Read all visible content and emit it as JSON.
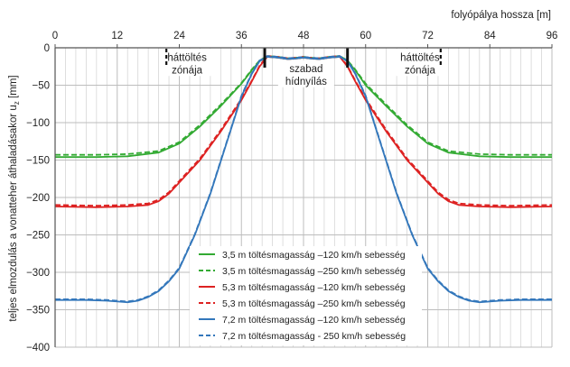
{
  "chart_data": {
    "type": "line",
    "xlabel": "folyópálya hossza   [m]",
    "ylabel": "teljes elmozdulás a vonatteher áthaladásakor  u",
    "ylabel_sub": "z",
    "ylabel_unit": " [mm]",
    "xlim": [
      0,
      96
    ],
    "ylim": [
      -400,
      0
    ],
    "xticks": [
      0,
      12,
      24,
      36,
      48,
      60,
      72,
      84,
      96
    ],
    "yticks": [
      0,
      -50,
      -100,
      -150,
      -200,
      -250,
      -300,
      -350,
      -400
    ],
    "grid": true,
    "x_axis_position": "top",
    "annotations": [
      {
        "lines": [
          "háttöltés",
          "zónája"
        ],
        "x": 25.5,
        "y": -10
      },
      {
        "lines": [
          "szabad",
          "hídnyílás"
        ],
        "x": 48.5,
        "y": -25
      },
      {
        "lines": [
          "háttöltés",
          "zónája"
        ],
        "x": 70.5,
        "y": -10
      }
    ],
    "dashed_markers_x": [
      21.5,
      74.5
    ],
    "bridge_supports_x": [
      40.5,
      56.5
    ],
    "series": [
      {
        "name": "3,5 m töltésmagasság –120 km/h sebesség",
        "color": "#33aa33",
        "style": "solid",
        "x": [
          0,
          8,
          14,
          20,
          24,
          28,
          32,
          36,
          38,
          39.5,
          41,
          43,
          45,
          47,
          48,
          49,
          51,
          53,
          55,
          56.5,
          58,
          60,
          64,
          68,
          72,
          76,
          82,
          88,
          96
        ],
        "y": [
          -146,
          -146,
          -145,
          -140,
          -128,
          -105,
          -78,
          -48,
          -30,
          -18,
          -12,
          -13,
          -15,
          -14,
          -13,
          -14,
          -15,
          -13,
          -12,
          -18,
          -30,
          -50,
          -78,
          -105,
          -128,
          -140,
          -145,
          -146,
          -146
        ]
      },
      {
        "name": "3,5 m töltésmagasság –250 km/h sebesség",
        "color": "#33aa33",
        "style": "dashed",
        "x": [
          0,
          8,
          14,
          20,
          24,
          28,
          32,
          36,
          38,
          39.5,
          41,
          43,
          45,
          47,
          48,
          49,
          51,
          53,
          55,
          56.5,
          58,
          60,
          64,
          68,
          72,
          76,
          82,
          88,
          96
        ],
        "y": [
          -143,
          -143,
          -142,
          -138,
          -126,
          -103,
          -76,
          -47,
          -29,
          -17,
          -11,
          -12,
          -14,
          -13,
          -12,
          -13,
          -14,
          -12,
          -11,
          -17,
          -29,
          -48,
          -76,
          -103,
          -126,
          -138,
          -142,
          -143,
          -143
        ]
      },
      {
        "name": "5,3 m töltésmagasság –120 km/h sebesség",
        "color": "#dd2222",
        "style": "solid",
        "x": [
          0,
          8,
          14,
          18,
          20,
          22,
          24,
          28,
          32,
          36,
          38,
          39.5,
          41,
          43,
          45,
          47,
          48,
          49,
          51,
          53,
          55,
          56.5,
          58,
          60,
          64,
          68,
          72,
          74,
          76,
          78,
          82,
          88,
          96
        ],
        "y": [
          -212,
          -213,
          -212,
          -210,
          -205,
          -195,
          -180,
          -150,
          -112,
          -70,
          -45,
          -25,
          -12,
          -13,
          -15,
          -14,
          -13,
          -14,
          -15,
          -13,
          -12,
          -25,
          -45,
          -70,
          -112,
          -150,
          -180,
          -195,
          -205,
          -210,
          -212,
          -213,
          -212
        ]
      },
      {
        "name": "5,3 m töltésmagasság –250 km/h sebesség",
        "color": "#dd2222",
        "style": "dashed",
        "x": [
          0,
          8,
          14,
          18,
          20,
          22,
          24,
          28,
          32,
          36,
          38,
          39.5,
          41,
          43,
          45,
          47,
          48,
          49,
          51,
          53,
          55,
          56.5,
          58,
          60,
          64,
          68,
          72,
          74,
          76,
          78,
          82,
          88,
          96
        ],
        "y": [
          -210,
          -211,
          -210,
          -208,
          -203,
          -193,
          -178,
          -148,
          -110,
          -68,
          -44,
          -24,
          -11,
          -12,
          -14,
          -13,
          -12,
          -13,
          -14,
          -12,
          -11,
          -24,
          -44,
          -68,
          -110,
          -148,
          -178,
          -193,
          -203,
          -208,
          -210,
          -211,
          -210
        ]
      },
      {
        "name": "7,2 m töltésmagasság –120 km/h sebesség",
        "color": "#3377bb",
        "style": "solid",
        "x": [
          0,
          6,
          10,
          14,
          16,
          18,
          20,
          22,
          24,
          27,
          30,
          33,
          36,
          38,
          39.5,
          41,
          43,
          45,
          47,
          48,
          49,
          51,
          53,
          55,
          56.5,
          58,
          60,
          63,
          66,
          69,
          72,
          74,
          76,
          78,
          80,
          82,
          86,
          90,
          96
        ],
        "y": [
          -337,
          -337,
          -338,
          -340,
          -338,
          -333,
          -325,
          -312,
          -295,
          -250,
          -195,
          -130,
          -65,
          -35,
          -18,
          -12,
          -13,
          -15,
          -14,
          -13,
          -14,
          -15,
          -13,
          -12,
          -18,
          -35,
          -65,
          -130,
          -195,
          -250,
          -295,
          -312,
          -325,
          -333,
          -338,
          -340,
          -338,
          -337,
          -337
        ]
      },
      {
        "name": "7,2 m töltésmagasság - 250 km/h sebesség",
        "color": "#3377bb",
        "style": "dashed",
        "x": [
          0,
          6,
          10,
          14,
          16,
          18,
          20,
          22,
          24,
          27,
          30,
          33,
          36,
          38,
          39.5,
          41,
          43,
          45,
          47,
          48,
          49,
          51,
          53,
          55,
          56.5,
          58,
          60,
          63,
          66,
          69,
          72,
          74,
          76,
          78,
          80,
          82,
          86,
          90,
          96
        ],
        "y": [
          -336,
          -336,
          -337,
          -339,
          -337,
          -332,
          -324,
          -311,
          -294,
          -249,
          -194,
          -129,
          -64,
          -34,
          -17,
          -11,
          -12,
          -14,
          -13,
          -12,
          -13,
          -14,
          -12,
          -11,
          -17,
          -34,
          -64,
          -129,
          -194,
          -249,
          -294,
          -311,
          -324,
          -332,
          -337,
          -339,
          -337,
          -336,
          -336
        ]
      }
    ]
  }
}
